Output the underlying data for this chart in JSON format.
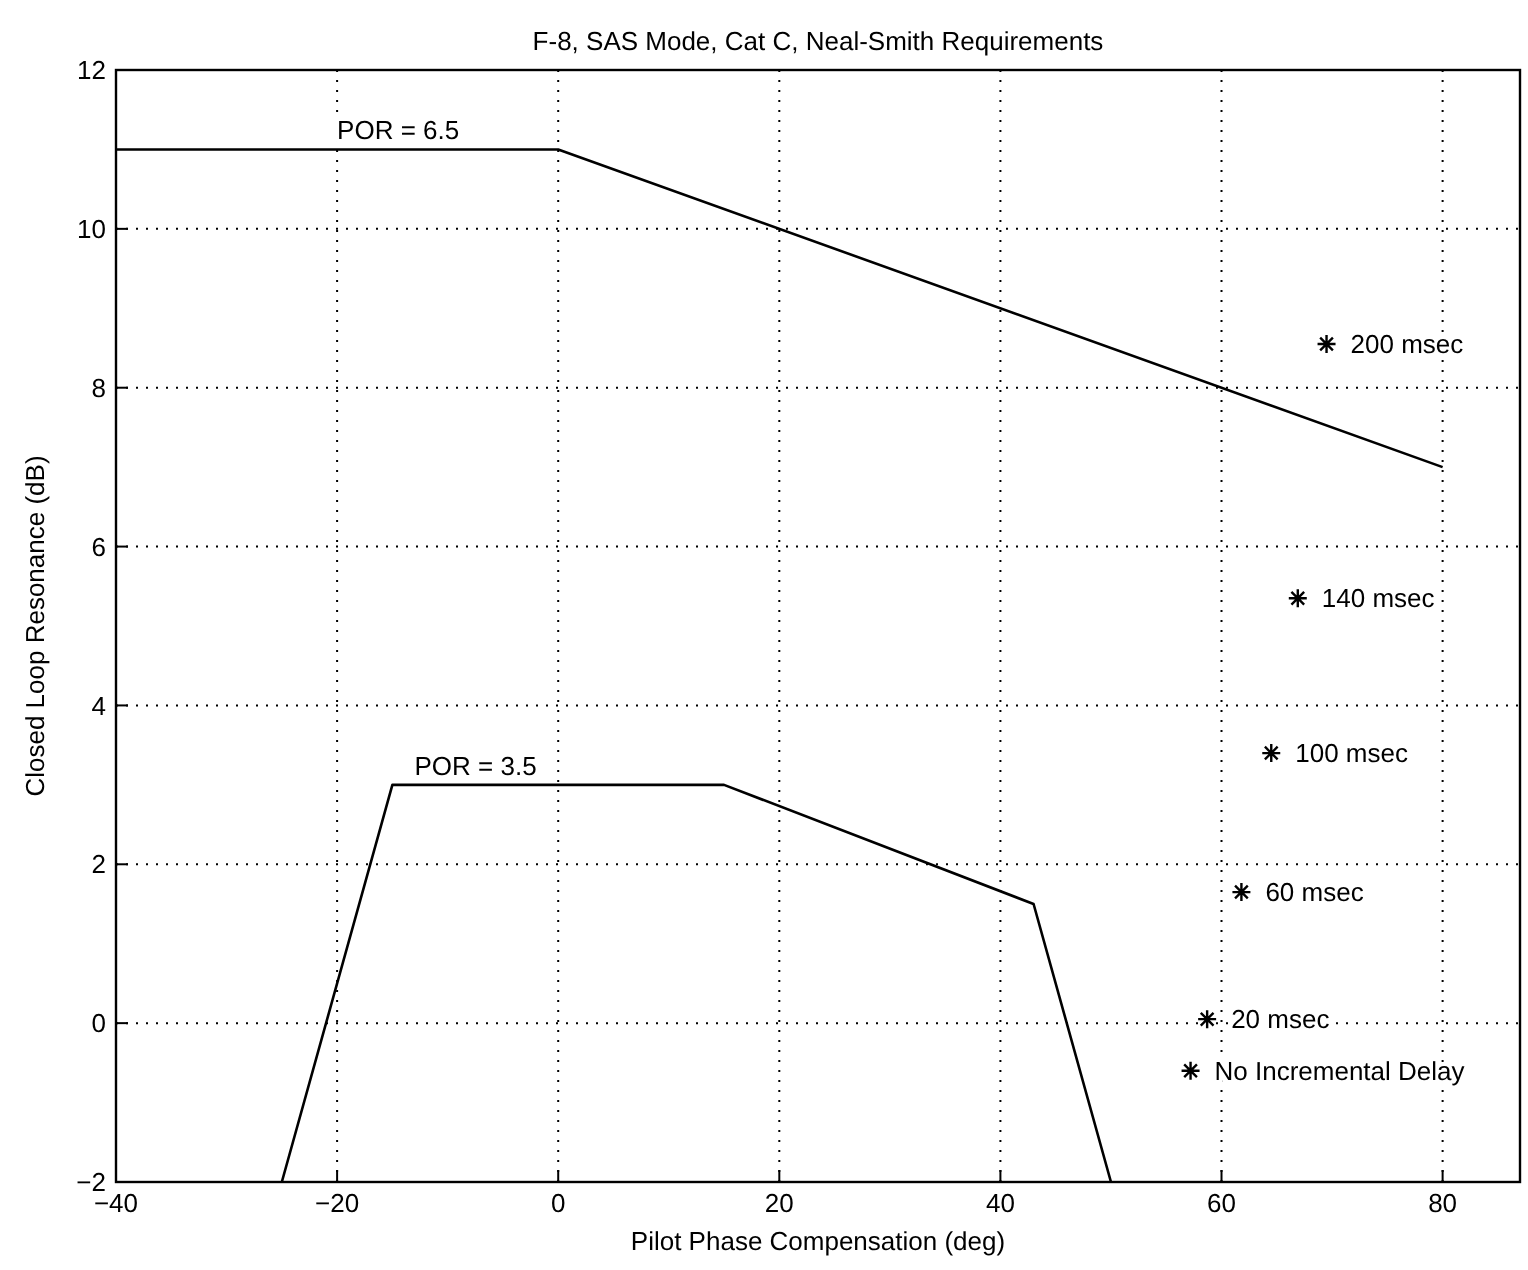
{
  "chart_data": {
    "type": "line",
    "title": "F-8, SAS Mode, Cat C, Neal-Smith Requirements",
    "xlabel": "Pilot Phase Compensation (deg)",
    "ylabel": "Closed Loop Resonance (dB)",
    "xlim": [
      -40,
      87
    ],
    "xticks": [
      -40,
      -20,
      0,
      20,
      40,
      60,
      80
    ],
    "ylim": [
      -2,
      12
    ],
    "yticks": [
      -2,
      0,
      2,
      4,
      6,
      8,
      10,
      12
    ],
    "grid": true,
    "line_style": "solid",
    "series": [
      {
        "color": "#000000",
        "x": [
          -40,
          0,
          80
        ],
        "values": [
          11,
          11,
          7
        ]
      },
      {
        "color": "#000000",
        "x": [
          -25,
          -15,
          15,
          43,
          50
        ],
        "values": [
          -2,
          3,
          3,
          1.5,
          -2
        ]
      },
      {
        "type": "scatter",
        "color": "#000000",
        "marker": "cross",
        "x": [
          69.5,
          66.9,
          64.5,
          61.8,
          58.7,
          57.2
        ],
        "values": [
          8.55,
          5.35,
          3.4,
          1.65,
          0.05,
          -0.6
        ]
      }
    ],
    "annotations": [
      {
        "text": "POR = 6.5",
        "x": -20,
        "y": 11
      },
      {
        "text": "POR = 3.5",
        "x": -13,
        "y": 3
      },
      {
        "text": "200 msec",
        "x": 69.5,
        "y": 8.55
      },
      {
        "text": "140 msec",
        "x": 66.9,
        "y": 5.35
      },
      {
        "text": "100 msec",
        "x": 64.5,
        "y": 3.4
      },
      {
        "text": "60 msec",
        "x": 61.8,
        "y": 1.65
      },
      {
        "text": "20 msec",
        "x": 58.7,
        "y": 0.05
      },
      {
        "text": "No Incremental Delay",
        "x": 57.2,
        "y": -0.6
      }
    ]
  }
}
